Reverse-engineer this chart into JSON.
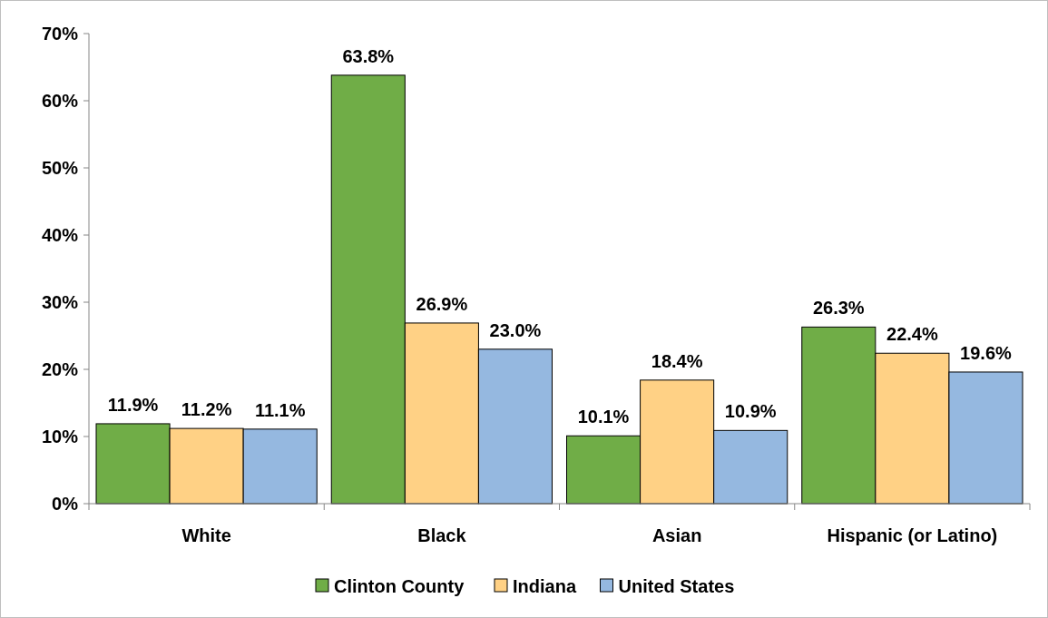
{
  "chart_data": {
    "type": "bar",
    "categories": [
      "White",
      "Black",
      "Asian",
      "Hispanic (or Latino)"
    ],
    "series": [
      {
        "name": "Clinton County",
        "color": "#70ad47",
        "values": [
          11.9,
          63.8,
          10.1,
          26.3
        ]
      },
      {
        "name": "Indiana",
        "color": "#ffd185",
        "values": [
          11.2,
          26.9,
          18.4,
          22.4
        ]
      },
      {
        "name": "United States",
        "color": "#95b8e0",
        "values": [
          11.1,
          23.0,
          10.9,
          19.6
        ]
      }
    ],
    "value_labels": [
      [
        "11.9%",
        "63.8%",
        "10.1%",
        "26.3%"
      ],
      [
        "11.2%",
        "26.9%",
        "18.4%",
        "22.4%"
      ],
      [
        "11.1%",
        "23.0%",
        "10.9%",
        "19.6%"
      ]
    ],
    "ylim": [
      0,
      70
    ],
    "yticks": [
      {
        "value": 0,
        "label": "0%"
      },
      {
        "value": 10,
        "label": "10%"
      },
      {
        "value": 20,
        "label": "20%"
      },
      {
        "value": 30,
        "label": "30%"
      },
      {
        "value": 40,
        "label": "40%"
      },
      {
        "value": 50,
        "label": "50%"
      },
      {
        "value": 60,
        "label": "60%"
      },
      {
        "value": 70,
        "label": "70%"
      }
    ],
    "grid": false,
    "legend": "bottom"
  }
}
